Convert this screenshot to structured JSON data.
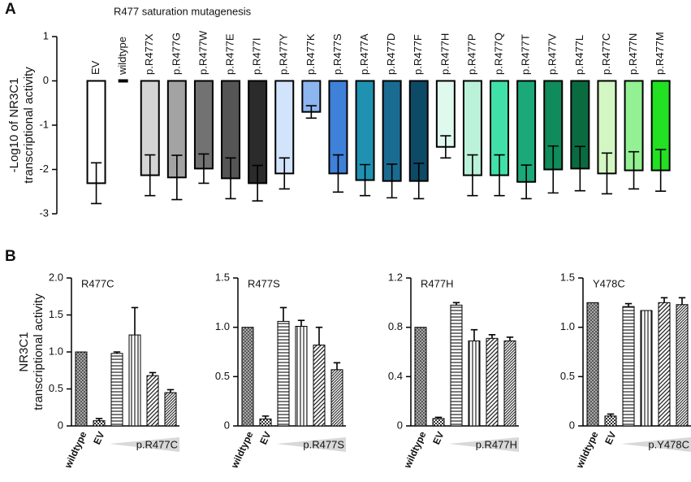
{
  "chart_data": [
    {
      "type": "bar",
      "panel": "A",
      "title": "R477 saturation mutagenesis",
      "ylabel": [
        "-Log10 of NR3C1",
        "transcriptional activity"
      ],
      "categories": [
        "EV",
        "wildtype",
        "p.R477X",
        "p.R477G",
        "p.R477W",
        "p.R477E",
        "p.R477I",
        "p.R477Y",
        "p.R477K",
        "p.R477S",
        "p.R477A",
        "p.R477D",
        "p.R477F",
        "p.R477H",
        "p.R477P",
        "p.R477Q",
        "p.R477T",
        "p.R477V",
        "p.R477L",
        "p.R477C",
        "p.R477N",
        "p.R477M"
      ],
      "values": [
        -2.31,
        0,
        -2.13,
        -2.18,
        -1.98,
        -2.2,
        -2.31,
        -2.09,
        -0.7,
        -2.09,
        -2.24,
        -2.26,
        -2.26,
        -1.49,
        -2.13,
        -2.13,
        -2.28,
        -2.0,
        -1.98,
        -2.09,
        -2.02,
        -2.02
      ],
      "errors": [
        0.46,
        0,
        0.46,
        0.5,
        0.33,
        0.46,
        0.4,
        0.35,
        0.14,
        0.42,
        0.35,
        0.38,
        0.4,
        0.25,
        0.46,
        0.46,
        0.38,
        0.53,
        0.5,
        0.46,
        0.42,
        0.47
      ],
      "error_bars": "both",
      "colors": [
        "#ffffff",
        "#000000",
        "#d4d4d4",
        "#a3a3a3",
        "#727272",
        "#555555",
        "#2b2b2b",
        "#d2e4fb",
        "#8db6f0",
        "#3f80d9",
        "#1f92b2",
        "#1a6b91",
        "#0d4a66",
        "#e0f9ee",
        "#bbf1d9",
        "#42e0a9",
        "#1ba979",
        "#108b5b",
        "#0a6b41",
        "#d3f6c3",
        "#93f193",
        "#22e022"
      ],
      "ylim": [
        -3,
        1
      ],
      "yticks": [
        1,
        0,
        -1,
        -2,
        -3
      ]
    },
    {
      "type": "bar",
      "panel": "B",
      "title": "R477C",
      "ylabel": [
        "NR3C1",
        "transcriptional activity"
      ],
      "categories": [
        "wildtype",
        "EV",
        null,
        null,
        null,
        null
      ],
      "group_label": "p.R477C",
      "values": [
        1.0,
        0.07,
        0.98,
        1.23,
        0.68,
        0.45
      ],
      "errors": [
        0,
        0.03,
        0.02,
        0.37,
        0.04,
        0.04
      ],
      "error_bars": "plus",
      "ylim": [
        0,
        2
      ],
      "yticks": [
        0,
        {
          "value": 0.5,
          "label": "0.5"
        },
        {
          "value": 1,
          "label": "1.0"
        },
        {
          "value": 1.5,
          "label": "1.5"
        },
        {
          "value": 2,
          "label": "2.0"
        }
      ]
    },
    {
      "type": "bar",
      "title": "R477S",
      "categories": [
        "wildtype",
        "EV",
        null,
        null,
        null,
        null
      ],
      "group_label": "p.R477S",
      "values": [
        1.0,
        0.07,
        1.06,
        1.01,
        0.82,
        0.57
      ],
      "errors": [
        0,
        0.03,
        0.14,
        0.06,
        0.18,
        0.07
      ],
      "error_bars": "plus",
      "ylim": [
        0,
        1.5
      ],
      "yticks": [
        0,
        0.5,
        {
          "value": 1,
          "label": "1.0"
        },
        1.5
      ]
    },
    {
      "type": "bar",
      "title": "R477H",
      "categories": [
        "wildtype",
        "EV",
        null,
        null,
        null,
        null
      ],
      "group_label": "p.R477H",
      "values": [
        0.8,
        0.06,
        0.98,
        0.69,
        0.71,
        0.69
      ],
      "errors": [
        0,
        0.01,
        0.02,
        0.09,
        0.03,
        0.03
      ],
      "error_bars": "plus",
      "ylim": [
        0,
        1.2
      ],
      "yticks": [
        0,
        0.4,
        0.8,
        1.2
      ]
    },
    {
      "type": "bar",
      "title": "Y478C",
      "categories": [
        "wildtype",
        "EV",
        null,
        null,
        null,
        null
      ],
      "group_label": "p.Y478C",
      "values": [
        1.25,
        0.1,
        1.21,
        1.17,
        1.25,
        1.23
      ],
      "errors": [
        0,
        0.02,
        0.03,
        0,
        0.05,
        0.07
      ],
      "error_bars": "plus",
      "ylim": [
        0,
        1.5
      ],
      "yticks": [
        0,
        0.5,
        {
          "value": 1,
          "label": "1.0"
        },
        1.5
      ]
    }
  ]
}
